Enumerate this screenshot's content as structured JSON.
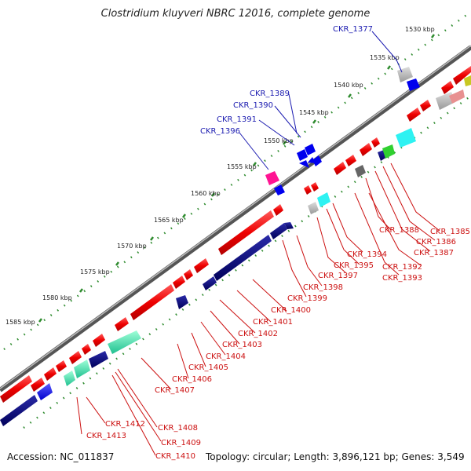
{
  "title": "Clostridium kluyveri NBRC 12016, complete genome",
  "footer": {
    "accession": "Accession: NC_011837",
    "summary": "Topology: circular; Length: 3,896,121 bp; Genes: 3,549"
  },
  "scale_labels": [
    "1530 kbp",
    "1535 kbp",
    "1540 kbp",
    "1545 kbp",
    "1550 kbp",
    "1555 kbp",
    "1560 kbp",
    "1565 kbp",
    "1570 kbp",
    "1575 kbp",
    "1580 kbp",
    "1585 kbp"
  ],
  "blue_labels": [
    "CKR_1377",
    "CKR_1389",
    "CKR_1390",
    "CKR_1391",
    "CKR_1396"
  ],
  "red_labels": [
    "CKR_1385",
    "CKR_1386",
    "CKR_1387",
    "CKR_1388",
    "CKR_1392",
    "CKR_1393",
    "CKR_1394",
    "CKR_1395",
    "CKR_1397",
    "CKR_1398",
    "CKR_1399",
    "CKR_1400",
    "CKR_1401",
    "CKR_1402",
    "CKR_1403",
    "CKR_1404",
    "CKR_1405",
    "CKR_1406",
    "CKR_1407",
    "CKR_1408",
    "CKR_1409",
    "CKR_1410",
    "CKR_1412",
    "CKR_1413"
  ],
  "colors": {
    "backbone": "#888888",
    "forward_gene": "#ff0000",
    "reverse_gene": "#000080",
    "label_blue": "#1a1ab0",
    "label_red": "#cc1111",
    "ticks": "#2e8b2e"
  }
}
